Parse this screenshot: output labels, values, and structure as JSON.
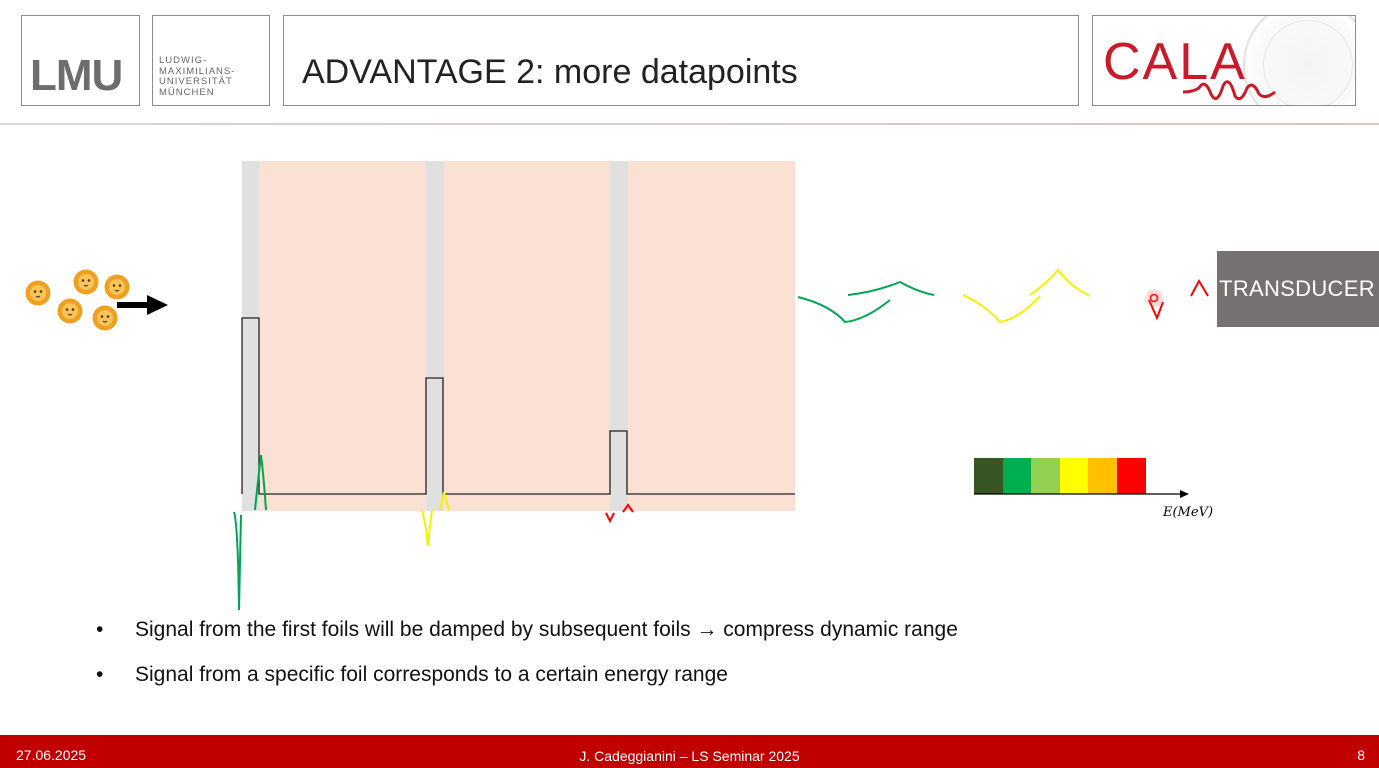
{
  "header": {
    "logo_lmu": "LMU",
    "university_name_lines": [
      "LUDWIG-",
      "MAXIMILIANS-",
      "UNIVERSITÄT",
      "MÜNCHEN"
    ],
    "title": "ADVANTAGE 2: more datapoints",
    "logo_cala": "CALA"
  },
  "diagram": {
    "transducer_label": "TRANSDUCER",
    "energy_axis_label": "E(MeV)",
    "energy_scale_colors": [
      "#375623",
      "#00b050",
      "#92d050",
      "#ffff00",
      "#ffc000",
      "#ff0000"
    ],
    "signal_colors": [
      "#00a651",
      "#f2f200",
      "#ff0000"
    ],
    "medium_color": "#fbe0d4",
    "foil_color": "#e0e0e0",
    "particle_icons": [
      "lion-face-icon",
      "lion-face-icon",
      "lion-face-icon",
      "lion-face-icon",
      "lion-face-icon"
    ],
    "arrow_icon": "right-arrow-icon"
  },
  "bullets": [
    {
      "before": "Signal from the first foils will be damped by subsequent foils ",
      "arrow": "→",
      "after": " compress dynamic range"
    },
    {
      "text": "Signal from a specific foil corresponds to a  certain energy range"
    }
  ],
  "footer": {
    "date": "27.06.2025",
    "center": "J. Cadeggianini – LS Seminar 2025",
    "page": "8"
  }
}
